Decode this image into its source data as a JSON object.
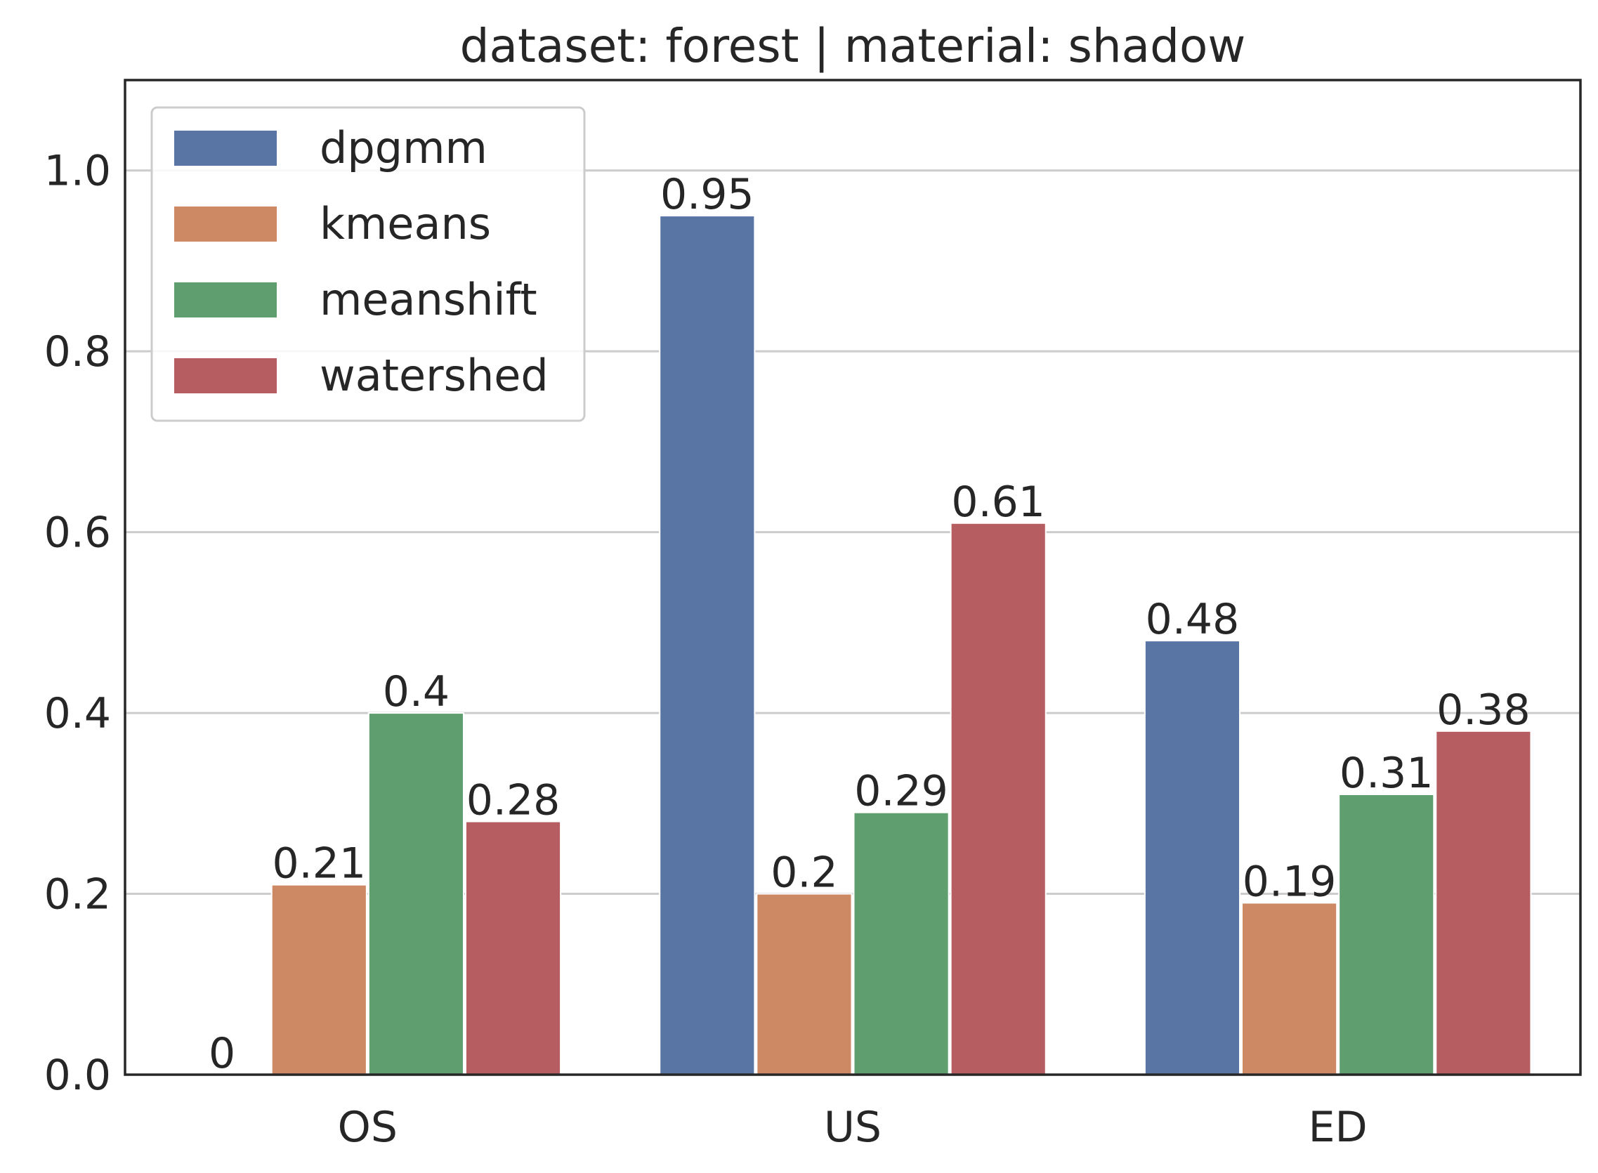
{
  "chart_data": {
    "type": "bar",
    "title": "dataset: forest | material: shadow",
    "xlabel": "",
    "ylabel": "",
    "categories": [
      "OS",
      "US",
      "ED"
    ],
    "ylim": [
      0,
      1.1
    ],
    "yticks": [
      0.0,
      0.2,
      0.4,
      0.6,
      0.8,
      1.0
    ],
    "ytick_labels": [
      "0.0",
      "0.2",
      "0.4",
      "0.6",
      "0.8",
      "1.0"
    ],
    "grid": "y",
    "legend_position": "top-left",
    "series": [
      {
        "name": "dpgmm",
        "color": "#5975a4",
        "values": [
          0,
          0.95,
          0.48
        ],
        "labels": [
          "0",
          "0.95",
          "0.48"
        ]
      },
      {
        "name": "kmeans",
        "color": "#cc8963",
        "values": [
          0.21,
          0.2,
          0.19
        ],
        "labels": [
          "0.21",
          "0.2",
          "0.19"
        ]
      },
      {
        "name": "meanshift",
        "color": "#5f9e6e",
        "values": [
          0.4,
          0.29,
          0.31
        ],
        "labels": [
          "0.4",
          "0.29",
          "0.31"
        ]
      },
      {
        "name": "watershed",
        "color": "#b55d60",
        "values": [
          0.28,
          0.61,
          0.38
        ],
        "labels": [
          "0.28",
          "0.61",
          "0.38"
        ]
      }
    ]
  }
}
